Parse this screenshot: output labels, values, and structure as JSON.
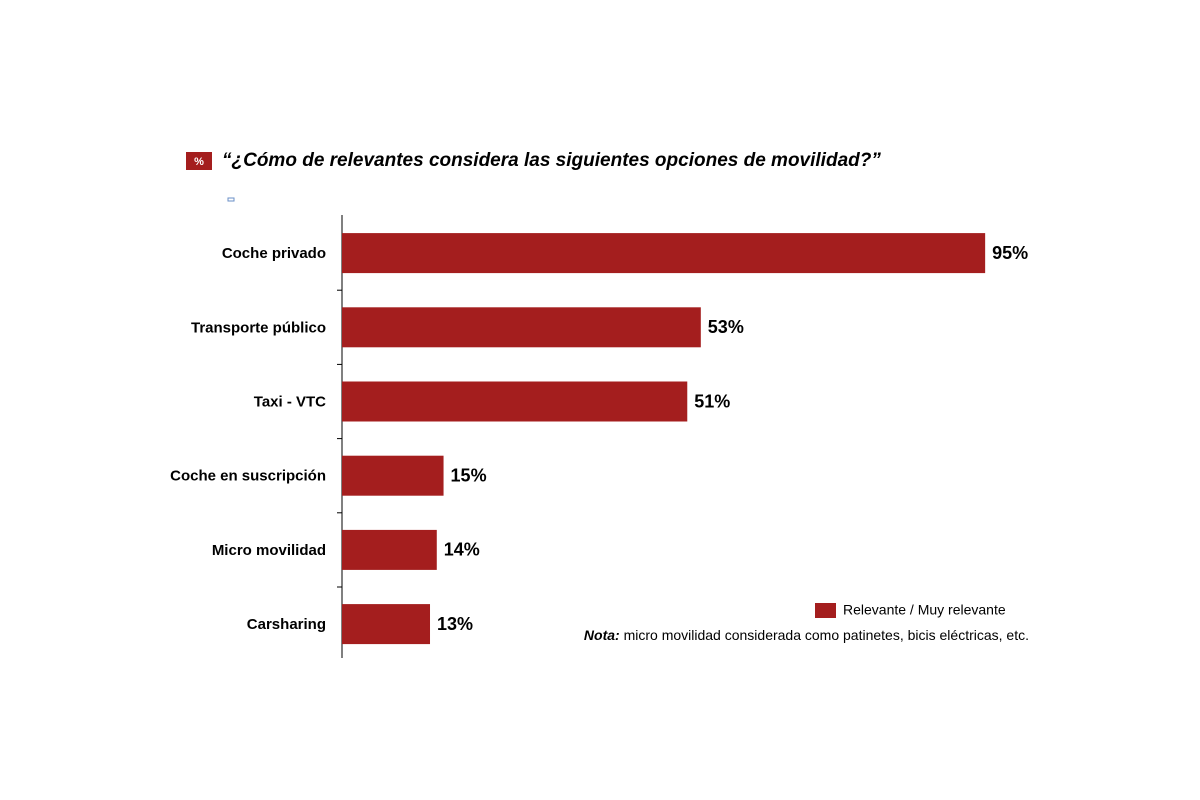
{
  "chart_data": {
    "type": "bar",
    "orientation": "horizontal",
    "badge": "%",
    "title": "“¿Cómo de relevantes considera las siguientes opciones de movilidad?”",
    "categories": [
      "Coche privado",
      "Transporte público",
      "Taxi - VTC",
      "Coche en suscripción",
      "Micro movilidad",
      "Carsharing"
    ],
    "series": [
      {
        "name": "Relevante / Muy relevante",
        "color": "#a41e1e",
        "values": [
          95,
          53,
          51,
          15,
          14,
          13
        ],
        "value_labels": [
          "95%",
          "53%",
          "51%",
          "15%",
          "14%",
          "13%"
        ]
      }
    ],
    "note": {
      "label": "Nota:",
      "text": "micro movilidad considerada como patinetes, bicis eléctricas, etc."
    }
  }
}
